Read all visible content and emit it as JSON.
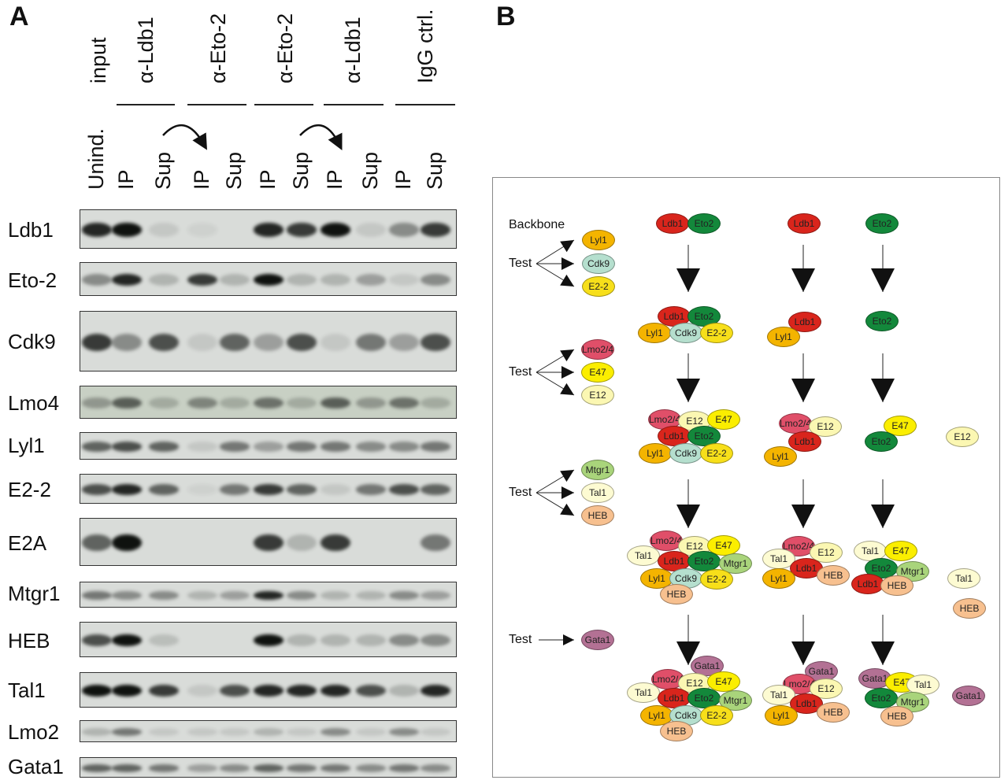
{
  "panel_a": {
    "letter": "A",
    "antibodies": [
      "input",
      "α-Ldb1",
      "α-Eto-2",
      "α-Eto-2",
      "α-Ldb1",
      "IgG ctrl."
    ],
    "lanes": [
      "Unind.",
      "IP",
      "Sup",
      "IP",
      "Sup",
      "IP",
      "Sup",
      "IP",
      "Sup",
      "IP",
      "Sup"
    ],
    "blots": [
      {
        "label": "Ldb1",
        "intensity": [
          0.9,
          1,
          0.1,
          0.05,
          0,
          0.9,
          0.8,
          1,
          0.1,
          0.4,
          0.8
        ]
      },
      {
        "label": "Eto-2",
        "intensity": [
          0.4,
          0.9,
          0.2,
          0.8,
          0.2,
          1,
          0.2,
          0.2,
          0.3,
          0.1,
          0.4
        ]
      },
      {
        "label": "Cdk9",
        "intensity": [
          0.8,
          0.4,
          0.7,
          0.1,
          0.6,
          0.3,
          0.7,
          0.1,
          0.5,
          0.3,
          0.7
        ]
      },
      {
        "label": "Lmo4",
        "intensity": [
          0.3,
          0.6,
          0.2,
          0.4,
          0.2,
          0.5,
          0.2,
          0.6,
          0.3,
          0.5,
          0.2
        ]
      },
      {
        "label": "Lyl1",
        "intensity": [
          0.6,
          0.7,
          0.6,
          0.1,
          0.5,
          0.3,
          0.5,
          0.5,
          0.4,
          0.4,
          0.5
        ]
      },
      {
        "label": "E2-2",
        "intensity": [
          0.7,
          0.9,
          0.6,
          0.05,
          0.5,
          0.8,
          0.6,
          0.1,
          0.5,
          0.7,
          0.6
        ]
      },
      {
        "label": "E2A",
        "intensity": [
          0.6,
          1,
          0,
          0,
          0,
          0.8,
          0.2,
          0.8,
          0,
          0,
          0.5
        ]
      },
      {
        "label": "Mtgr1",
        "intensity": [
          0.5,
          0.4,
          0.4,
          0.2,
          0.3,
          0.9,
          0.4,
          0.2,
          0.2,
          0.4,
          0.3
        ]
      },
      {
        "label": "HEB",
        "intensity": [
          0.7,
          1,
          0.15,
          0,
          0,
          1,
          0.2,
          0.2,
          0.2,
          0.4,
          0.4
        ]
      },
      {
        "label": "Tal1",
        "intensity": [
          1,
          1,
          0.8,
          0.1,
          0.7,
          0.9,
          0.9,
          0.9,
          0.7,
          0.2,
          0.9
        ]
      },
      {
        "label": "Lmo2",
        "intensity": [
          0.2,
          0.5,
          0.1,
          0.1,
          0.1,
          0.2,
          0.1,
          0.4,
          0.1,
          0.4,
          0.1
        ]
      },
      {
        "label": "Gata1",
        "intensity": [
          0.6,
          0.6,
          0.5,
          0.3,
          0.4,
          0.6,
          0.5,
          0.5,
          0.4,
          0.5,
          0.4
        ]
      }
    ]
  },
  "panel_b": {
    "letter": "B",
    "backbone_label": "Backbone",
    "test_label": "Test",
    "colors": {
      "Ldb1": "#d9251c",
      "Eto2": "#13883b",
      "Lyl1": "#f4b400",
      "Cdk9": "#b5dfce",
      "E2-2": "#f7df1a",
      "Lmo2/4": "#e04f69",
      "E47": "#fbee00",
      "E12": "#fbf7b2",
      "Mtgr1": "#a9d47b",
      "Tal1": "#fdfbd2",
      "HEB": "#f7c08f",
      "Gata1": "#b37194"
    },
    "tests": [
      [
        "Lyl1",
        "Cdk9",
        "E2-2"
      ],
      [
        "Lmo2/4",
        "E47",
        "E12"
      ],
      [
        "Mtgr1",
        "Tal1",
        "HEB"
      ],
      [
        "Gata1"
      ]
    ],
    "rows": [
      [
        [
          "Ldb1",
          "Eto2"
        ],
        [
          "Ldb1"
        ],
        [
          "Eto2"
        ]
      ],
      [
        [
          "Ldb1",
          "Eto2",
          "Lyl1",
          "Cdk9",
          "E2-2"
        ],
        [
          "Ldb1",
          "Lyl1"
        ],
        [
          "Eto2"
        ]
      ],
      [
        [
          "Lmo2/4",
          "E12",
          "E47",
          "Ldb1",
          "Eto2",
          "Lyl1",
          "Cdk9",
          "E2-2"
        ],
        [
          "Lmo2/4",
          "E12",
          "Ldb1",
          "Lyl1"
        ],
        [
          "E47",
          "Eto2"
        ],
        [
          "E12"
        ]
      ],
      [
        [
          "Lmo2/4",
          "E12",
          "E47",
          "Tal1",
          "Ldb1",
          "Eto2",
          "Mtgr1",
          "Lyl1",
          "Cdk9",
          "E2-2",
          "HEB"
        ],
        [
          "Lmo2/4",
          "E12",
          "Tal1",
          "Ldb1",
          "Lyl1",
          "HEB"
        ],
        [
          "Tal1",
          "E47",
          "Eto2",
          "Mtgr1",
          "Ldb1",
          "HEB"
        ],
        [
          "Tal1",
          "HEB"
        ]
      ],
      [
        [
          "Gata1",
          "Lmo2/4",
          "E12",
          "E47",
          "Tal1",
          "Ldb1",
          "Eto2",
          "Mtgr1",
          "Lyl1",
          "Cdk9",
          "E2-2",
          "HEB"
        ],
        [
          "Gata1",
          "Lmo2/4",
          "E12",
          "Tal1",
          "Ldb1",
          "Lyl1",
          "HEB"
        ],
        [
          "Gata1",
          "E47",
          "Tal1",
          "Eto2",
          "Mtgr1",
          "HEB"
        ],
        [
          "Gata1"
        ]
      ]
    ]
  }
}
